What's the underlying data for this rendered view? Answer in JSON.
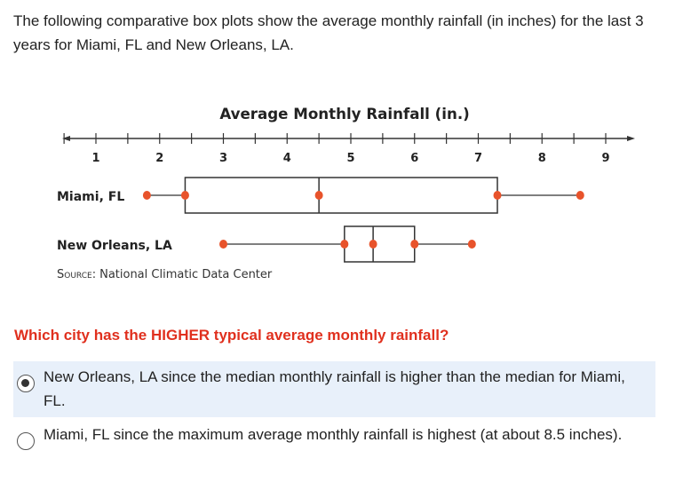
{
  "intro": "The following comparative box plots show the average monthly rainfall (in inches) for the last 3 years for Miami, FL and New Orleans, LA.",
  "chart_data": {
    "type": "boxplot",
    "title": "Average Monthly Rainfall (in.)",
    "xlim": [
      1,
      9
    ],
    "tick_labels": [
      "1",
      "2",
      "3",
      "4",
      "5",
      "6",
      "7",
      "8",
      "9"
    ],
    "minor_tick_step": 0.5,
    "source_prefix": "Source:",
    "source": "National Climatic Data Center",
    "point_color": "#e8532b",
    "series": [
      {
        "name": "Miami, FL",
        "min": 1.8,
        "q1": 2.4,
        "median": 4.5,
        "q3": 7.3,
        "max": 8.6
      },
      {
        "name": "New Orleans, LA",
        "min": 3.0,
        "q1": 4.9,
        "median": 5.35,
        "q3": 6.0,
        "max": 6.9
      }
    ]
  },
  "question": "Which city has the HIGHER typical average monthly rainfall?",
  "options": [
    {
      "label": "New Orleans, LA since the median monthly rainfall is higher than the median for Miami, FL.",
      "selected": true
    },
    {
      "label": "Miami, FL since the maximum average monthly rainfall is highest (at about 8.5 inches).",
      "selected": false
    }
  ]
}
